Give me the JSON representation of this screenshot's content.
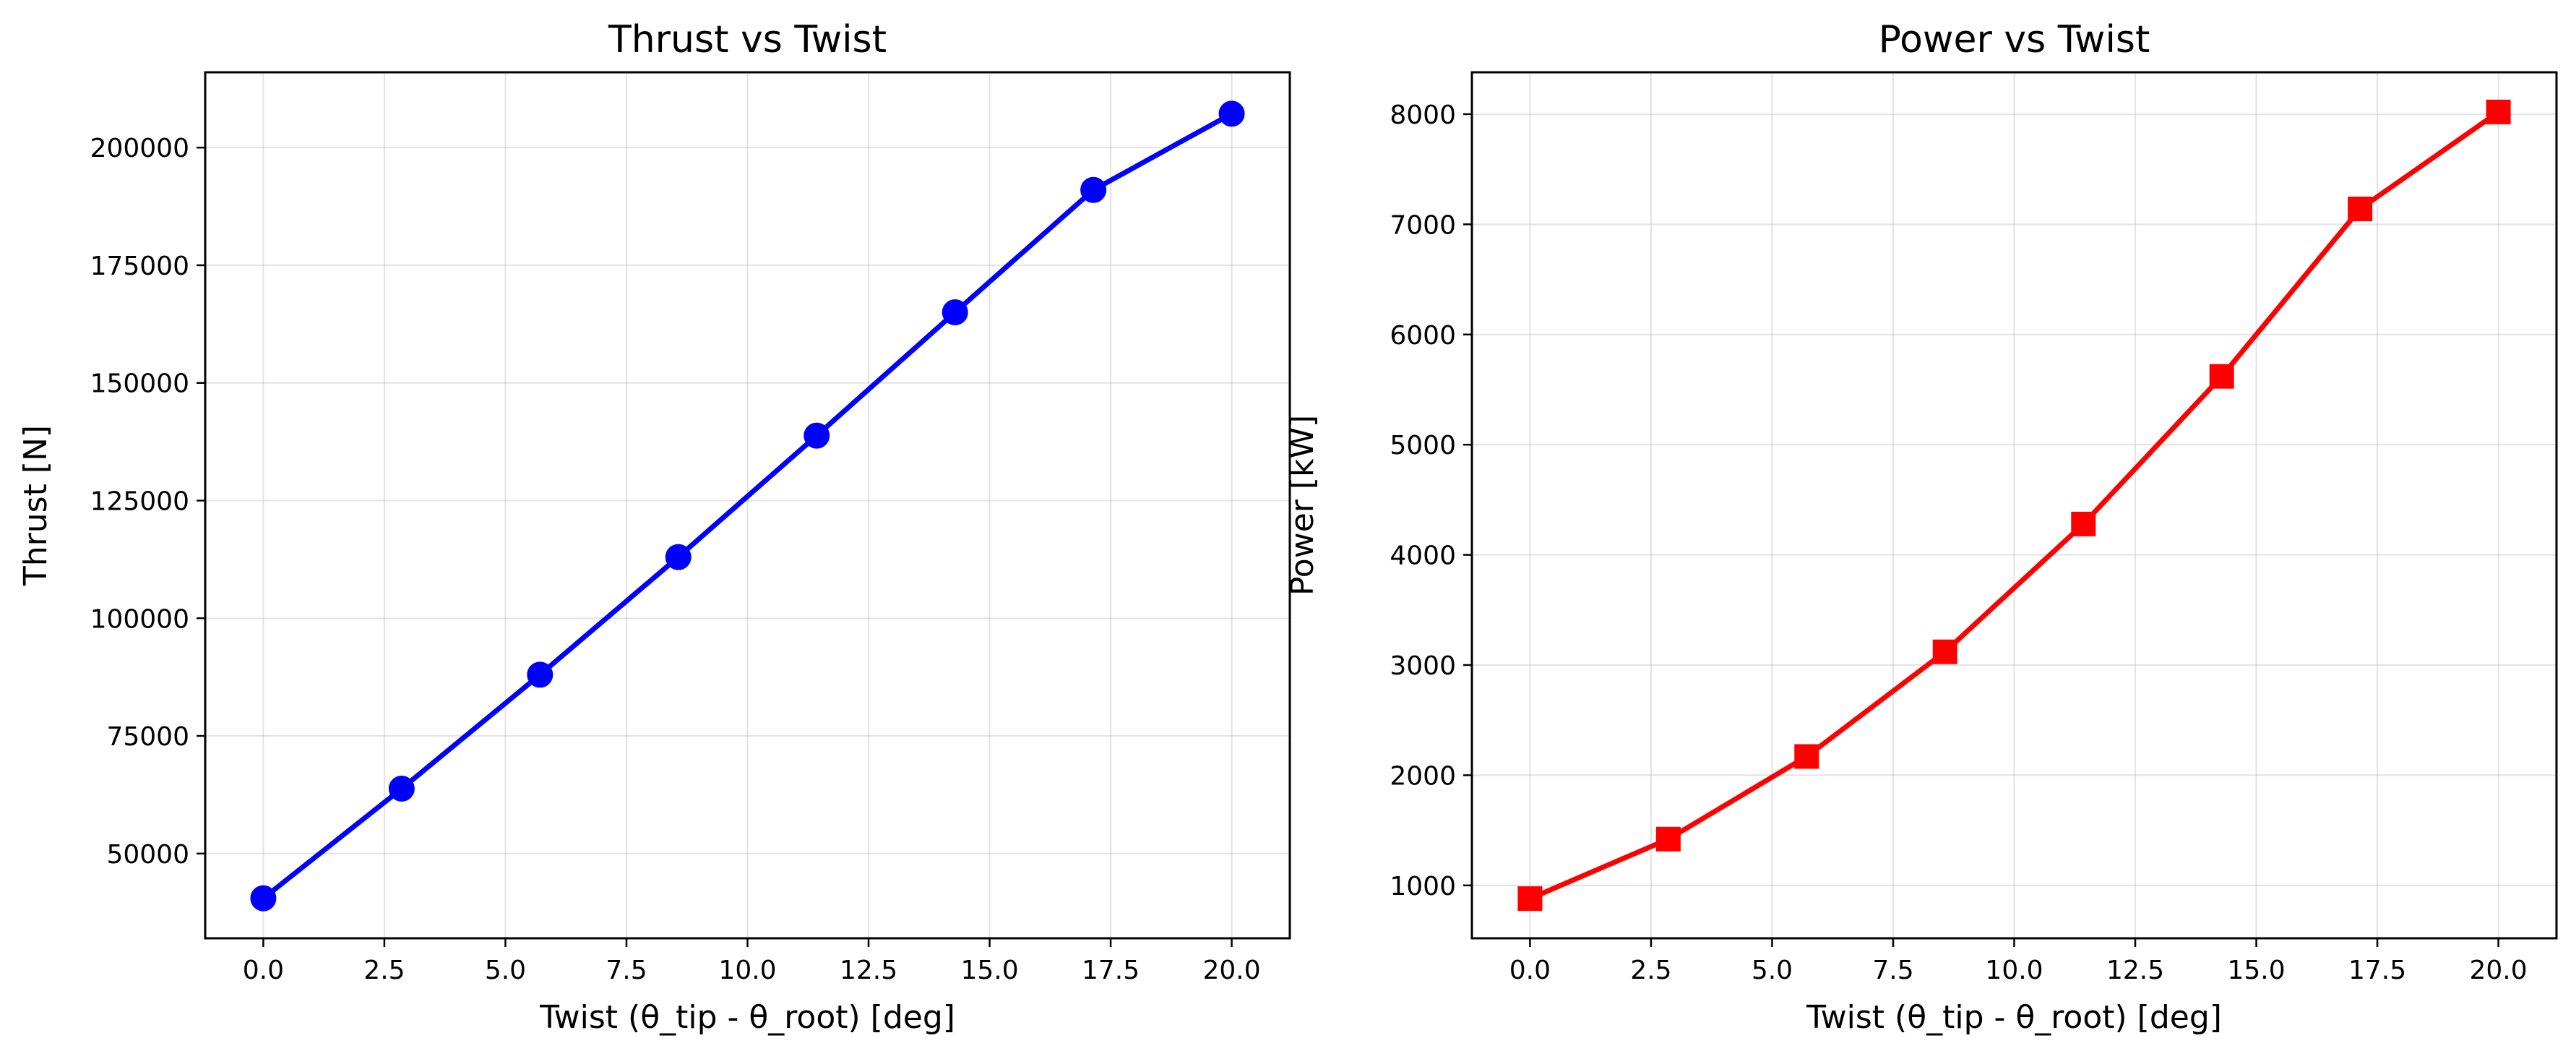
{
  "chart_data": [
    {
      "type": "line",
      "title": "Thrust vs Twist",
      "xlabel": "Twist (θ_tip - θ_root) [deg]",
      "ylabel": "Thrust [N]",
      "x": [
        0.0,
        2.857,
        5.714,
        8.571,
        11.429,
        14.286,
        17.143,
        20.0
      ],
      "series": [
        {
          "values": [
            40500,
            63800,
            88000,
            113000,
            138800,
            165000,
            191000,
            207200
          ]
        }
      ],
      "marker": "circle",
      "color": "#0000ff",
      "xlim": [
        -1.2,
        21.2
      ],
      "ylim": [
        32000,
        216000
      ],
      "xticks": [
        "0.0",
        "2.5",
        "5.0",
        "7.5",
        "10.0",
        "12.5",
        "15.0",
        "17.5",
        "20.0"
      ],
      "yticks": [
        "50000",
        "75000",
        "100000",
        "125000",
        "150000",
        "175000",
        "200000"
      ],
      "grid": true
    },
    {
      "type": "line",
      "title": "Power vs Twist",
      "xlabel": "Twist (θ_tip - θ_root) [deg]",
      "ylabel": "Power [kW]",
      "x": [
        0.0,
        2.857,
        5.714,
        8.571,
        11.429,
        14.286,
        17.143,
        20.0
      ],
      "series": [
        {
          "values": [
            880,
            1420,
            2170,
            3120,
            4280,
            5620,
            7140,
            8020
          ]
        }
      ],
      "marker": "square",
      "color": "#ff0000",
      "xlim": [
        -1.2,
        21.2
      ],
      "ylim": [
        520,
        8380
      ],
      "xticks": [
        "0.0",
        "2.5",
        "5.0",
        "7.5",
        "10.0",
        "12.5",
        "15.0",
        "17.5",
        "20.0"
      ],
      "yticks": [
        "1000",
        "2000",
        "3000",
        "4000",
        "5000",
        "6000",
        "7000",
        "8000"
      ],
      "grid": true
    }
  ]
}
